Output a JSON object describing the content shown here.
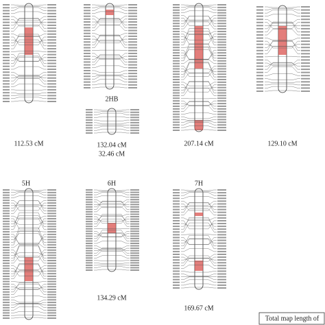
{
  "chromosomes": [
    {
      "length": "112.53 cM"
    },
    {
      "name": "2HB",
      "length": "132.04 cM",
      "length_b": "32.46 cM"
    },
    {
      "length": "207.14 cM"
    },
    {
      "length": "129.10 cM"
    },
    {
      "name": "5H"
    },
    {
      "name": "6H",
      "length": "134.29 cM"
    },
    {
      "name": "7H",
      "length": "169.67 cM"
    }
  ],
  "legend": {
    "text": "Total map length of"
  }
}
